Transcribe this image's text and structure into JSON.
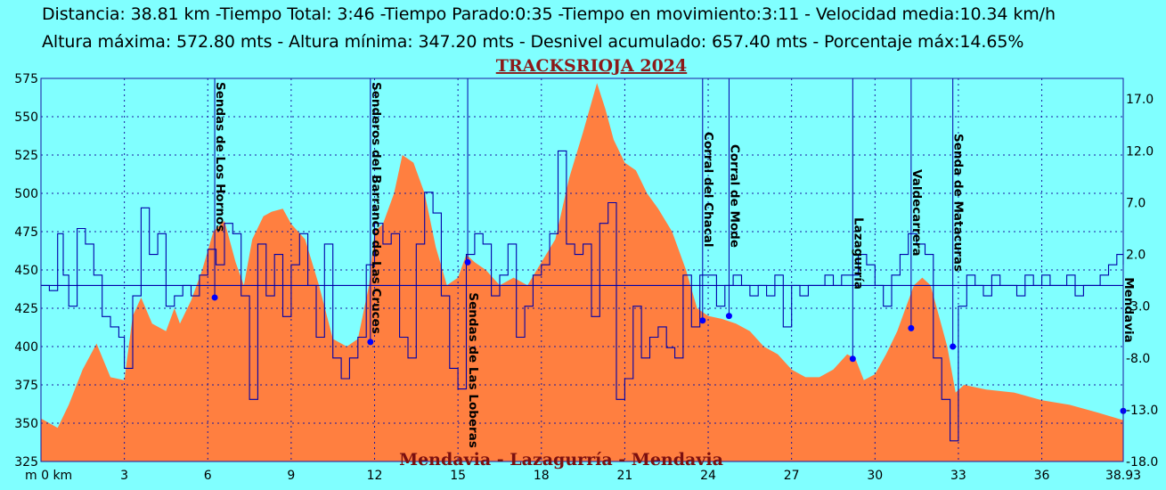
{
  "stats": {
    "line1": "Distancia: 38.81 km -Tiempo Total: 3:46 -Tiempo Parado:0:35 -Tiempo en movimiento:3:11 - Velocidad media:10.34 km/h",
    "line2": "Altura máxima: 572.80 mts - Altura mínima: 347.20 mts - Desnivel acumulado: 657.40 mts - Porcentaje máx:14.65%"
  },
  "colors": {
    "background": "#80ffff",
    "elevation_fill": "#ff7f40",
    "slope_line": "#0000aa",
    "grid": "#1a1aa0",
    "waypoint": "#0000ff"
  },
  "chart_data": {
    "type": "area",
    "title": "TRACKSRIOJA 2024",
    "subtitle": "Mendavia - Lazagurría - Mendavia",
    "x_unit_label": "m 0 km",
    "x_end_label": "38.93",
    "xlim": [
      0,
      38.93
    ],
    "x_ticks": [
      0,
      3,
      6,
      9,
      12,
      15,
      18,
      21,
      24,
      27,
      30,
      33,
      36
    ],
    "ylim_left": [
      325,
      575
    ],
    "y_ticks_left": [
      325,
      350,
      375,
      400,
      425,
      450,
      475,
      500,
      525,
      550,
      575
    ],
    "ylim_right": [
      -18,
      19
    ],
    "y_ticks_right": [
      17,
      12,
      7,
      2,
      -3,
      -8,
      -13,
      -18
    ],
    "y_ticks_right_labels": [
      "17.0",
      "12.0",
      "7.0",
      "2.0",
      "-3.0",
      "-8.0",
      "-13.0",
      "-18.0"
    ],
    "elevation_series": {
      "name": "Altura (mts)",
      "x": [
        0,
        0.6,
        1.0,
        1.5,
        2.0,
        2.5,
        3.0,
        3.3,
        3.6,
        4.0,
        4.5,
        4.8,
        5.0,
        5.4,
        5.8,
        6.2,
        6.6,
        7.0,
        7.3,
        7.6,
        8.0,
        8.3,
        8.7,
        9.0,
        9.5,
        10.0,
        10.5,
        11.0,
        11.4,
        11.8,
        12.0,
        12.3,
        12.7,
        13.0,
        13.4,
        13.8,
        14.2,
        14.6,
        15.0,
        15.3,
        15.6,
        16.0,
        16.5,
        17.0,
        17.5,
        18.0,
        18.5,
        19.0,
        19.5,
        20.0,
        20.3,
        20.6,
        21.0,
        21.4,
        21.8,
        22.2,
        22.7,
        23.2,
        23.6,
        24.0,
        24.5,
        25.0,
        25.5,
        26.0,
        26.5,
        27.0,
        27.5,
        28.0,
        28.5,
        29.0,
        29.3,
        29.6,
        30.0,
        30.4,
        30.8,
        31.1,
        31.4,
        31.7,
        32.0,
        32.3,
        32.6,
        32.9,
        33.2,
        34.0,
        35.0,
        36.0,
        37.0,
        38.0,
        38.93
      ],
      "values": [
        353,
        347,
        362,
        385,
        402,
        380,
        378,
        420,
        432,
        415,
        410,
        425,
        415,
        430,
        450,
        475,
        482,
        455,
        440,
        470,
        485,
        488,
        490,
        480,
        470,
        440,
        405,
        400,
        405,
        440,
        475,
        480,
        500,
        525,
        520,
        500,
        465,
        440,
        445,
        460,
        455,
        450,
        440,
        445,
        440,
        455,
        470,
        510,
        540,
        572,
        555,
        535,
        520,
        515,
        500,
        490,
        475,
        450,
        425,
        420,
        418,
        415,
        410,
        400,
        395,
        385,
        380,
        380,
        385,
        395,
        392,
        378,
        382,
        395,
        410,
        425,
        440,
        445,
        440,
        420,
        400,
        370,
        375,
        372,
        370,
        365,
        362,
        357,
        352
      ]
    },
    "slope_series": {
      "name": "Porcentaje (%)",
      "x": [
        0,
        0.3,
        0.6,
        0.8,
        1.0,
        1.3,
        1.6,
        1.9,
        2.2,
        2.5,
        2.8,
        3.0,
        3.3,
        3.6,
        3.9,
        4.2,
        4.5,
        4.8,
        5.1,
        5.4,
        5.7,
        6.0,
        6.3,
        6.6,
        6.9,
        7.2,
        7.5,
        7.8,
        8.1,
        8.4,
        8.7,
        9.0,
        9.3,
        9.6,
        9.9,
        10.2,
        10.5,
        10.8,
        11.1,
        11.4,
        11.7,
        12.0,
        12.3,
        12.6,
        12.9,
        13.2,
        13.5,
        13.8,
        14.1,
        14.4,
        14.7,
        15.0,
        15.3,
        15.6,
        15.9,
        16.2,
        16.5,
        16.8,
        17.1,
        17.4,
        17.7,
        18.0,
        18.3,
        18.6,
        18.9,
        19.2,
        19.5,
        19.8,
        20.1,
        20.4,
        20.7,
        21.0,
        21.3,
        21.6,
        21.9,
        22.2,
        22.5,
        22.8,
        23.1,
        23.4,
        23.7,
        24.0,
        24.3,
        24.6,
        24.9,
        25.2,
        25.5,
        25.8,
        26.1,
        26.4,
        26.7,
        27.0,
        27.3,
        27.6,
        27.9,
        28.2,
        28.5,
        28.8,
        29.1,
        29.4,
        29.7,
        30.0,
        30.3,
        30.6,
        30.9,
        31.2,
        31.5,
        31.8,
        32.1,
        32.4,
        32.7,
        33.0,
        33.3,
        33.6,
        33.9,
        34.2,
        34.5,
        34.8,
        35.1,
        35.4,
        35.7,
        36.0,
        36.3,
        36.6,
        36.9,
        37.2,
        37.5,
        37.8,
        38.1,
        38.4,
        38.7,
        38.93
      ],
      "values": [
        -1,
        -1.5,
        4,
        0,
        -3,
        4.5,
        3,
        0,
        -4,
        -5,
        -6,
        -9,
        -2,
        6.5,
        2,
        4,
        -3,
        -2,
        -1,
        -2,
        0,
        2.5,
        1,
        5,
        4,
        -2,
        -12,
        3,
        -2,
        2,
        -4,
        1,
        4,
        -1,
        -6,
        3,
        -8,
        -10,
        -8,
        -6,
        1,
        5,
        3,
        4,
        -6,
        -8,
        3,
        8,
        6,
        -2,
        -9,
        -11,
        2,
        4,
        3,
        -2,
        0,
        3,
        -6,
        -3,
        0,
        1,
        4,
        12,
        3,
        2,
        3,
        -4,
        5,
        7,
        -12,
        -10,
        -3,
        -8,
        -6,
        -5,
        -7,
        -8,
        0,
        -5,
        0,
        0,
        -3,
        -1,
        0,
        -1,
        -2,
        -1,
        -2,
        0,
        -5,
        -1,
        -2,
        -1,
        -1,
        0,
        -1,
        0,
        0,
        2,
        1,
        -1,
        -3,
        0,
        2,
        4,
        3,
        2,
        -8,
        -12,
        -16,
        -3,
        0,
        -1,
        -2,
        0,
        -1,
        -1,
        -2,
        0,
        -1,
        0,
        -1,
        -1,
        0,
        -2,
        -1,
        -1,
        0,
        1,
        2,
        1
      ]
    },
    "waypoints": [
      {
        "name": "Sendas de Los Hornos",
        "km": 6.25,
        "alt": 432,
        "side": "top"
      },
      {
        "name": "Senderos del Barranco de Las Cruces",
        "km": 11.85,
        "alt": 403,
        "side": "top"
      },
      {
        "name": "Sendas de Las Loberas",
        "km": 15.35,
        "alt": 455,
        "side": "bottom"
      },
      {
        "name": "Corral del Chacal",
        "km": 23.8,
        "alt": 417,
        "side": "top"
      },
      {
        "name": "Corral de Mode",
        "km": 24.75,
        "alt": 420,
        "side": "top"
      },
      {
        "name": "Lazagurría",
        "km": 29.2,
        "alt": 392,
        "side": "top"
      },
      {
        "name": "Valdecarrera",
        "km": 31.3,
        "alt": 412,
        "side": "top"
      },
      {
        "name": "Senda de Matacuras",
        "km": 32.8,
        "alt": 400,
        "side": "top"
      },
      {
        "name": "Mendavia",
        "km": 38.93,
        "alt": 358,
        "side": "right"
      }
    ]
  }
}
